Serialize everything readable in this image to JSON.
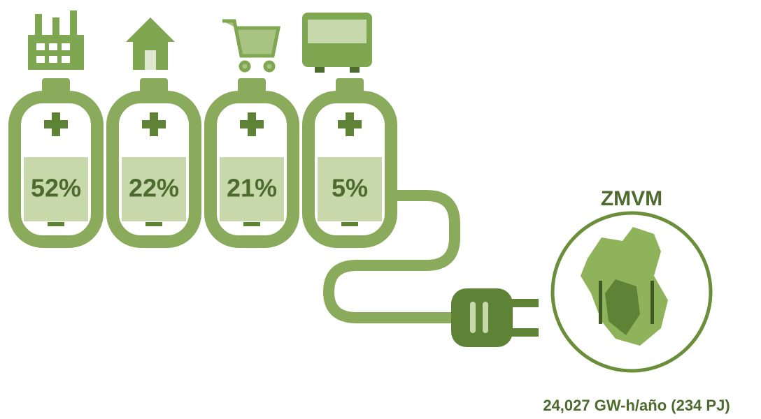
{
  "batteries": [
    {
      "label": "52%"
    },
    {
      "label": "22%"
    },
    {
      "label": "21%"
    },
    {
      "label": "5%"
    }
  ],
  "region": "ZMVM",
  "total": "24,027 GW-h/año (234 PJ)"
}
